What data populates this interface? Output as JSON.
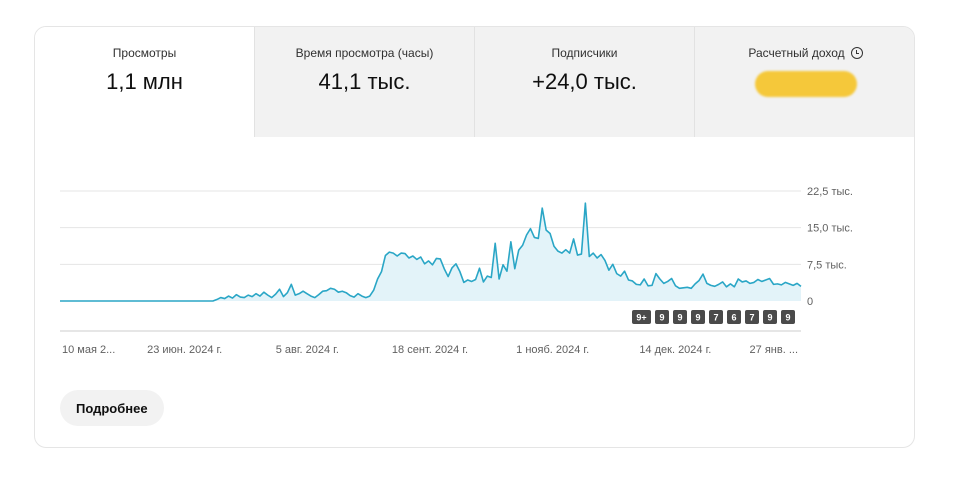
{
  "tabs": [
    {
      "label": "Просмотры",
      "value": "1,1 млн",
      "active": true
    },
    {
      "label": "Время просмотра (часы)",
      "value": "41,1 тыс.",
      "active": false
    },
    {
      "label": "Подписчики",
      "value": "+24,0 тыс.",
      "active": false
    },
    {
      "label": "Расчетный доход",
      "value": "",
      "active": false,
      "icon": "clock-icon",
      "redacted": true
    }
  ],
  "more_button": "Подробнее",
  "colors": {
    "line": "#2aa6c6",
    "fill": "#e3f3f9",
    "grid": "#e5e5e5",
    "badge": "#4a4a4a",
    "redaction": "#f5c83a"
  },
  "chart_data": {
    "type": "area",
    "ylim": [
      0,
      22500
    ],
    "y_ticks": [
      {
        "value": 0,
        "label": "0"
      },
      {
        "value": 7500,
        "label": "7,5 тыс."
      },
      {
        "value": 15000,
        "label": "15,0 тыс."
      },
      {
        "value": 22500,
        "label": "22,5 тыс."
      }
    ],
    "x_tick_labels": [
      "10 мая 2...",
      "23 июн. 2024 г.",
      "5 авг. 2024 г.",
      "18 сент. 2024 г.",
      "1 нояб. 2024 г.",
      "14 дек. 2024 г.",
      "27 янв. ..."
    ],
    "grid": true,
    "badges": [
      "9+",
      "9",
      "9",
      "9",
      "7",
      "6",
      "7",
      "9",
      "9"
    ],
    "series": [
      {
        "x_range": [
          "2024-05-10",
          "2025-02-05"
        ],
        "values": [
          0,
          0,
          0,
          0,
          0,
          0,
          0,
          0,
          0,
          0,
          0,
          0,
          0,
          0,
          0,
          0,
          0,
          0,
          0,
          0,
          0,
          0,
          0,
          0,
          0,
          0,
          0,
          0,
          0,
          0,
          0,
          0,
          0,
          0,
          0,
          0,
          0,
          0,
          0,
          0,
          300,
          700,
          500,
          1000,
          600,
          1300,
          800,
          700,
          1200,
          900,
          1500,
          1000,
          1800,
          1200,
          700,
          1400,
          2400,
          900,
          1700,
          3400,
          1200,
          1500,
          2000,
          1500,
          1000,
          700,
          1300,
          2000,
          2100,
          2600,
          2400,
          1800,
          2000,
          1700,
          1100,
          800,
          1500,
          1000,
          700,
          1000,
          2200,
          4500,
          6000,
          9300,
          10000,
          9800,
          9200,
          9800,
          9700,
          8800,
          9200,
          8500,
          9000,
          7600,
          8200,
          7400,
          8700,
          8600,
          6600,
          5000,
          6800,
          7600,
          6000,
          3800,
          4300,
          4000,
          4400,
          6700,
          3900,
          5100,
          4800,
          11800,
          4500,
          7400,
          6100,
          12100,
          6600,
          10400,
          11400,
          13500,
          14800,
          13000,
          12800,
          19000,
          14500,
          13800,
          11200,
          10200,
          9800,
          10500,
          9800,
          12700,
          9400,
          9600,
          20000,
          9100,
          9800,
          8800,
          9500,
          8300,
          6300,
          7500,
          5600,
          5100,
          6100,
          4300,
          4100,
          3400,
          3300,
          4500,
          3100,
          3200,
          5600,
          4500,
          3600,
          4000,
          4600,
          3100,
          2600,
          2700,
          2800,
          2600,
          3500,
          4200,
          5500,
          3600,
          3200,
          3000,
          3400,
          3900,
          2900,
          3500,
          2900,
          4500,
          3900,
          4100,
          3600,
          3800,
          4400,
          4000,
          4300,
          4600,
          3400,
          3500,
          3300,
          3800,
          3500,
          3200,
          3600,
          3000
        ]
      }
    ]
  }
}
